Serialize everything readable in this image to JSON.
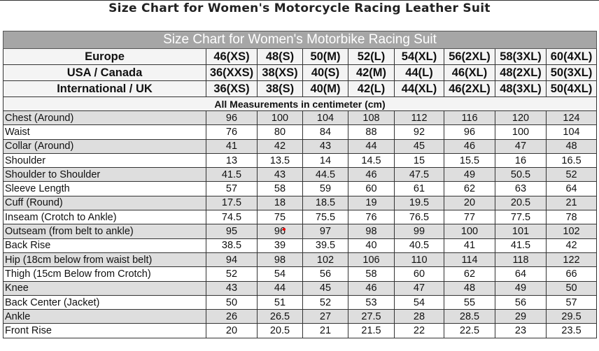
{
  "page_title": "Size Chart for Women's Motorcycle Racing Leather Suit",
  "table": {
    "title": "Size Chart for Women's Motorbike Racing Suit",
    "header_rows": [
      {
        "label": "Europe",
        "sizes": [
          "46(XS)",
          "48(S)",
          "50(M)",
          "52(L)",
          "54(XL)",
          "56(2XL)",
          "58(3XL)",
          "60(4XL)"
        ]
      },
      {
        "label": "USA / Canada",
        "sizes": [
          "36(XXS)",
          "38(XS)",
          "40(S)",
          "42(M)",
          "44(L)",
          "46(XL)",
          "48(2XL)",
          "50(3XL)"
        ]
      },
      {
        "label": "International / UK",
        "sizes": [
          "36(XS)",
          "38(S)",
          "40(M)",
          "42(L)",
          "44(XL)",
          "46(2XL)",
          "48(3XL)",
          "50(4XL)"
        ]
      }
    ],
    "unit_note": "All Measurements in centimeter (cm)",
    "rows": [
      {
        "label": "Chest (Around)",
        "values": [
          "96",
          "100",
          "104",
          "108",
          "112",
          "116",
          "120",
          "124"
        ]
      },
      {
        "label": "Waist",
        "values": [
          "76",
          "80",
          "84",
          "88",
          "92",
          "96",
          "100",
          "104"
        ]
      },
      {
        "label": "Collar (Around)",
        "values": [
          "41",
          "42",
          "43",
          "44",
          "45",
          "46",
          "47",
          "48"
        ]
      },
      {
        "label": "Shoulder",
        "values": [
          "13",
          "13.5",
          "14",
          "14.5",
          "15",
          "15.5",
          "16",
          "16.5"
        ]
      },
      {
        "label": "Shoulder to Shoulder",
        "values": [
          "41.5",
          "43",
          "44.5",
          "46",
          "47.5",
          "49",
          "50.5",
          "52"
        ]
      },
      {
        "label": "Sleeve Length",
        "values": [
          "57",
          "58",
          "59",
          "60",
          "61",
          "62",
          "63",
          "64"
        ]
      },
      {
        "label": "Cuff (Round)",
        "values": [
          "17.5",
          "18",
          "18.5",
          "19",
          "19.5",
          "20",
          "20.5",
          "21"
        ]
      },
      {
        "label": "Inseam (Crotch to Ankle)",
        "values": [
          "74.5",
          "75",
          "75.5",
          "76",
          "76.5",
          "77",
          "77.5",
          "78"
        ]
      },
      {
        "label": "Outseam (from belt to ankle)",
        "values": [
          "95",
          "96",
          "97",
          "98",
          "99",
          "100",
          "101",
          "102"
        ]
      },
      {
        "label": "Back Rise",
        "values": [
          "38.5",
          "39",
          "39.5",
          "40",
          "40.5",
          "41",
          "41.5",
          "42"
        ]
      },
      {
        "label": "Hip (18cm below from waist belt)",
        "values": [
          "94",
          "98",
          "102",
          "106",
          "110",
          "114",
          "118",
          "122"
        ]
      },
      {
        "label": "Thigh (15cm Below from Crotch)",
        "values": [
          "52",
          "54",
          "56",
          "58",
          "60",
          "62",
          "64",
          "66"
        ]
      },
      {
        "label": "Knee",
        "values": [
          "43",
          "44",
          "45",
          "46",
          "47",
          "48",
          "49",
          "50"
        ]
      },
      {
        "label": "Back Center (Jacket)",
        "values": [
          "50",
          "51",
          "52",
          "53",
          "54",
          "55",
          "56",
          "57"
        ]
      },
      {
        "label": "Ankle",
        "values": [
          "26",
          "26.5",
          "27",
          "27.5",
          "28",
          "28.5",
          "29",
          "29.5"
        ]
      },
      {
        "label": "Front Rise",
        "values": [
          "20",
          "20.5",
          "21",
          "21.5",
          "22",
          "22.5",
          "23",
          "23.5"
        ]
      }
    ]
  },
  "colors": {
    "title_bar": "#a6a6a6",
    "shaded_row": "#dedede",
    "border": "#333333"
  }
}
